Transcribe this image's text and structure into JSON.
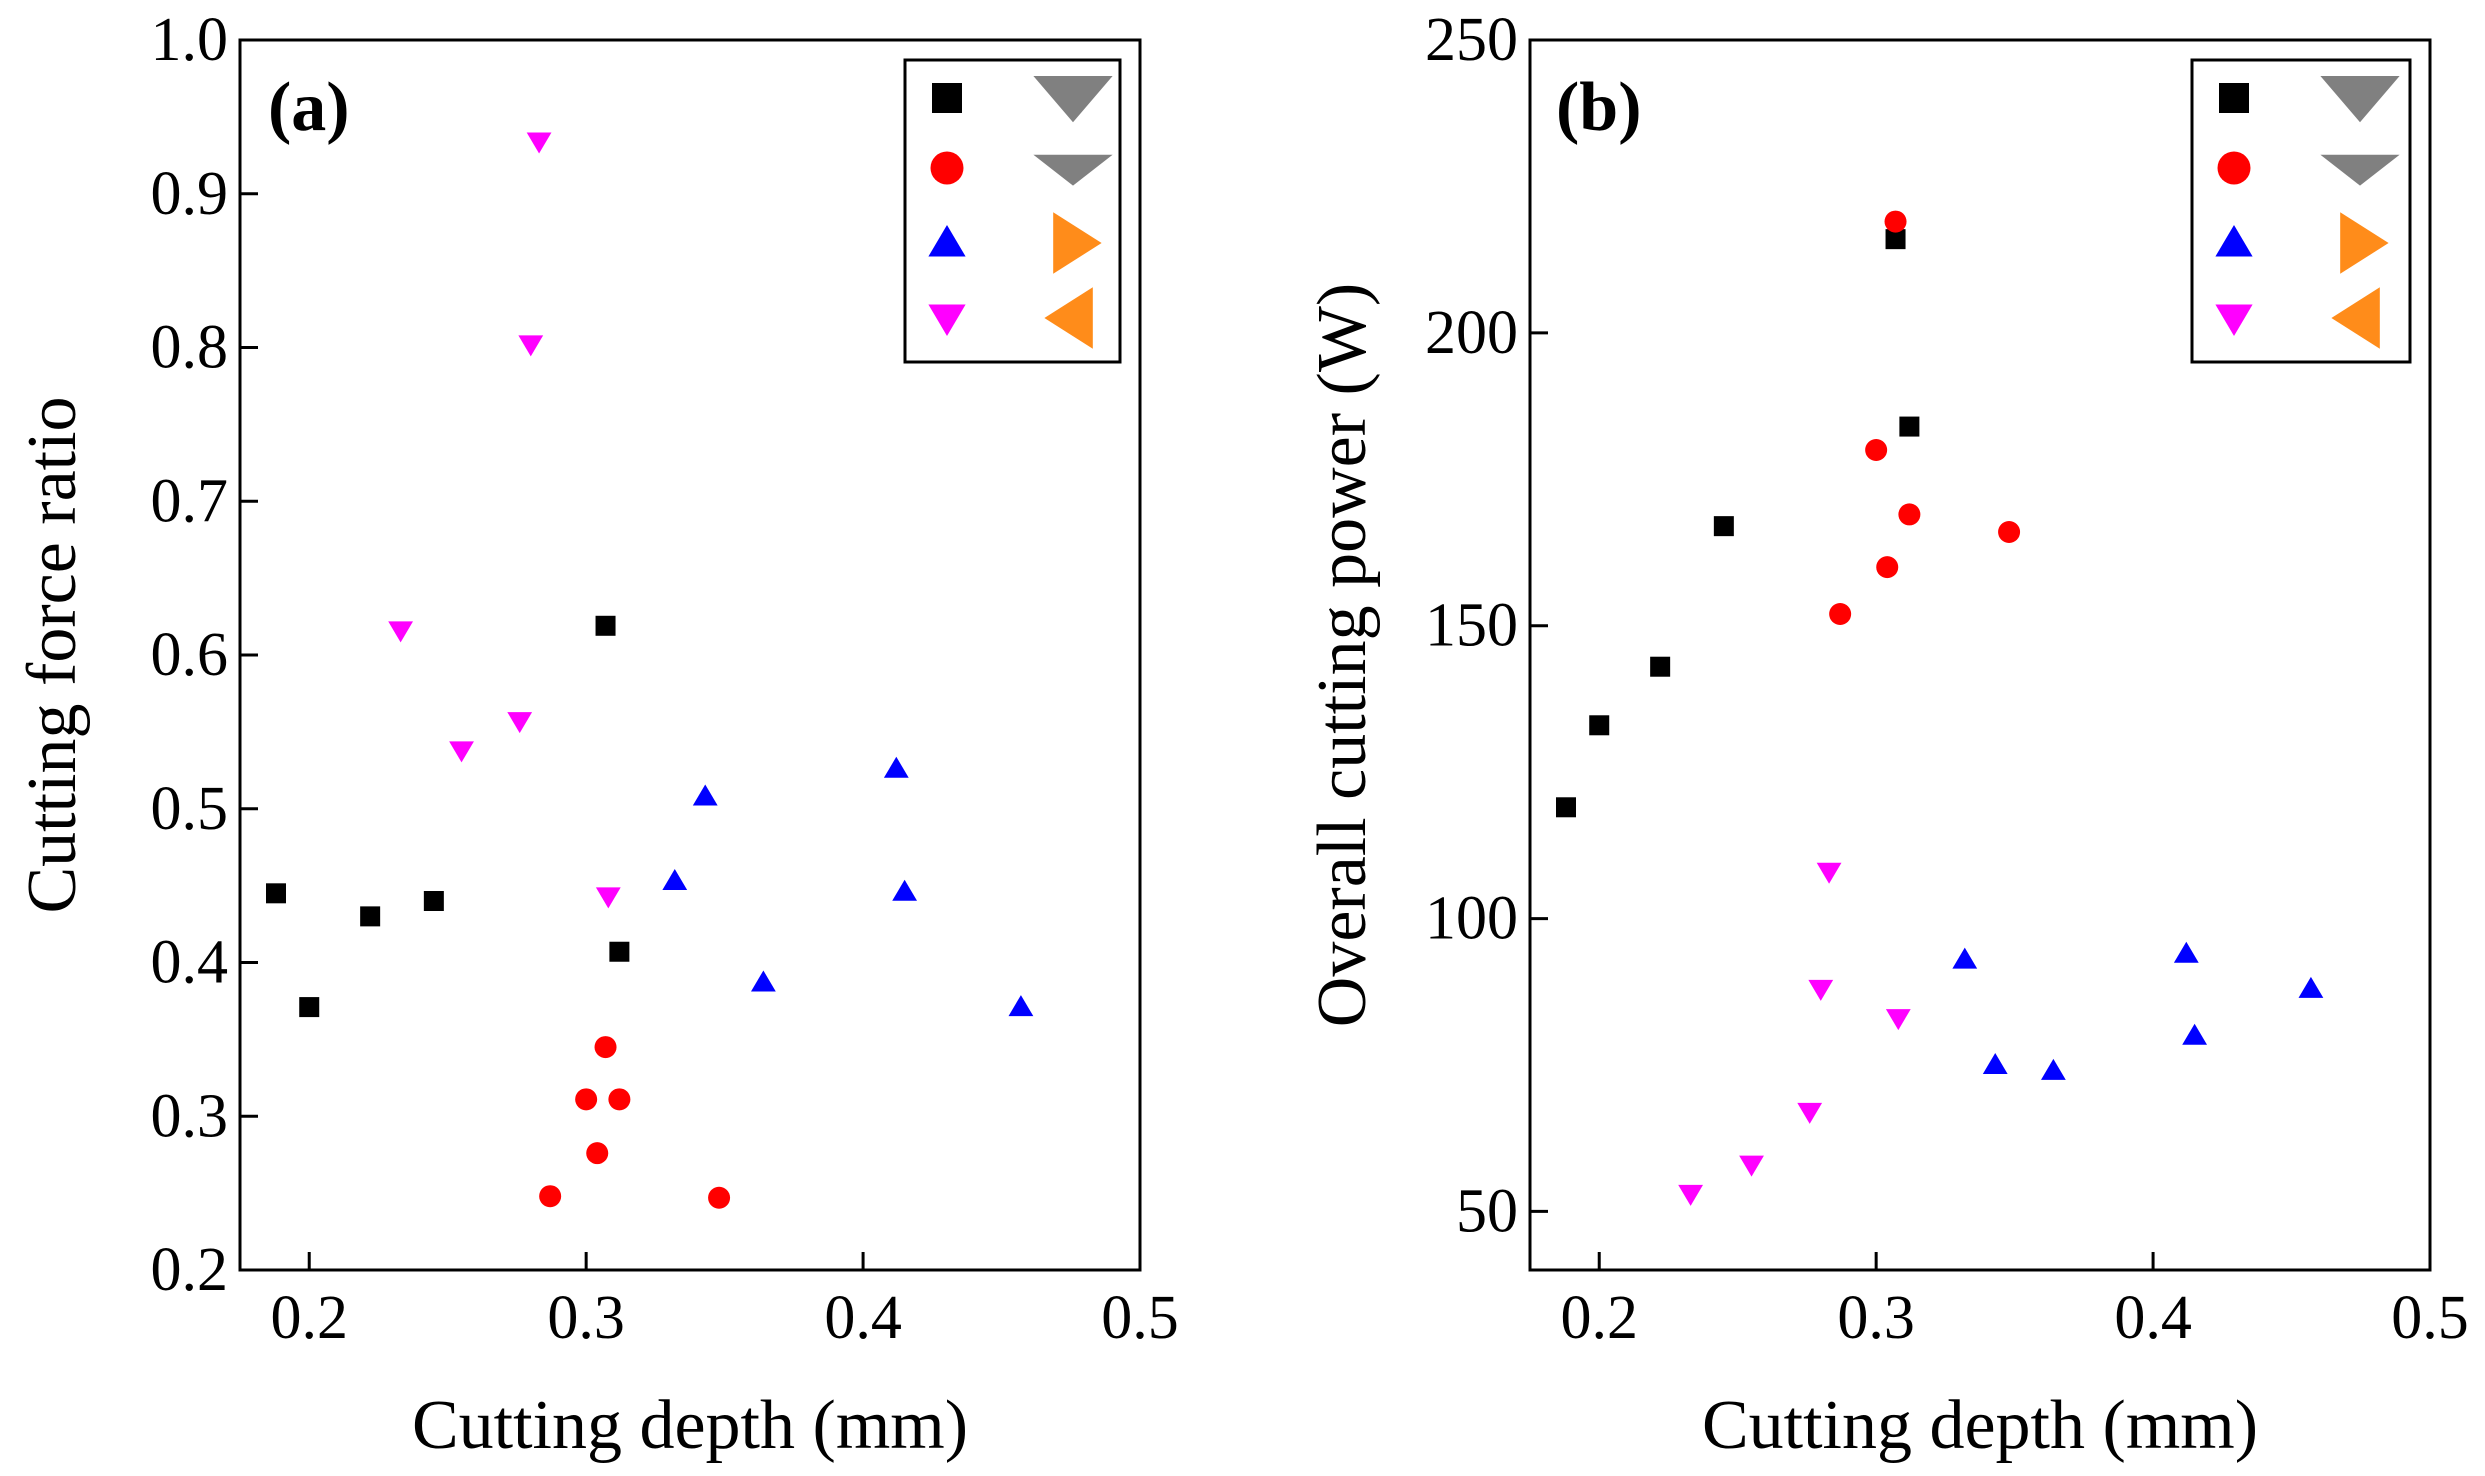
{
  "chart_data": [
    {
      "type": "scatter",
      "panel_label": "(a)",
      "xlabel": "Cutting depth (mm)",
      "ylabel": "Cutting force ratio",
      "xlim": [
        0.175,
        0.5
      ],
      "ylim": [
        0.2,
        1.0
      ],
      "xticks": [
        0.2,
        0.3,
        0.4,
        0.5
      ],
      "yticks": [
        0.2,
        0.3,
        0.4,
        0.5,
        0.6,
        0.7,
        0.8,
        0.9,
        1.0
      ],
      "xtick_labels": [
        "0.2",
        "0.3",
        "0.4",
        "0.5"
      ],
      "ytick_labels": [
        "0.2",
        "0.3",
        "0.4",
        "0.5",
        "0.6",
        "0.7",
        "0.8",
        "0.9",
        "1.0"
      ],
      "legend_position": "top-right",
      "series": [
        {
          "name": "black-square",
          "marker": "square",
          "color": "#000000",
          "x": [
            0.188,
            0.2,
            0.222,
            0.245,
            0.307,
            0.312
          ],
          "y": [
            0.445,
            0.371,
            0.43,
            0.44,
            0.619,
            0.407
          ]
        },
        {
          "name": "red-circle",
          "marker": "circle",
          "color": "#ff0000",
          "x": [
            0.287,
            0.3,
            0.304,
            0.307,
            0.312,
            0.348
          ],
          "y": [
            0.248,
            0.311,
            0.276,
            0.345,
            0.311,
            0.247
          ]
        },
        {
          "name": "blue-triangle-up",
          "marker": "triangle-up",
          "color": "#0000ff",
          "x": [
            0.332,
            0.343,
            0.364,
            0.412,
            0.415,
            0.457
          ],
          "y": [
            0.453,
            0.508,
            0.387,
            0.526,
            0.446,
            0.371
          ]
        },
        {
          "name": "magenta-triangle-down",
          "marker": "triangle-down",
          "color": "#ff00ff",
          "x": [
            0.233,
            0.255,
            0.276,
            0.28,
            0.283,
            0.308
          ],
          "y": [
            0.616,
            0.538,
            0.557,
            0.802,
            0.934,
            0.443
          ]
        }
      ],
      "legend_extra_markers": [
        {
          "marker": "triangle-down-wide",
          "color": "#808080"
        },
        {
          "marker": "triangle-down-flat",
          "color": "#808080"
        },
        {
          "marker": "triangle-right",
          "color": "#ff8c1a"
        },
        {
          "marker": "triangle-left",
          "color": "#ff8c1a"
        }
      ]
    },
    {
      "type": "scatter",
      "panel_label": "(b)",
      "xlabel": "Cutting depth (mm)",
      "ylabel": "Overall cutting power (W)",
      "xlim": [
        0.175,
        0.5
      ],
      "ylim": [
        40,
        250
      ],
      "xticks": [
        0.2,
        0.3,
        0.4,
        0.5
      ],
      "yticks": [
        50,
        100,
        150,
        200,
        250
      ],
      "xtick_labels": [
        "0.2",
        "0.3",
        "0.4",
        "0.5"
      ],
      "ytick_labels": [
        "50",
        "100",
        "150",
        "200",
        "250"
      ],
      "legend_position": "top-right",
      "series": [
        {
          "name": "black-square",
          "marker": "square",
          "color": "#000000",
          "x": [
            0.188,
            0.2,
            0.222,
            0.245,
            0.307,
            0.312
          ],
          "y": [
            119,
            133,
            143,
            167,
            216,
            184
          ]
        },
        {
          "name": "red-circle",
          "marker": "circle",
          "color": "#ff0000",
          "x": [
            0.287,
            0.3,
            0.304,
            0.307,
            0.312,
            0.348
          ],
          "y": [
            152,
            180,
            160,
            219,
            169,
            166
          ]
        },
        {
          "name": "blue-triangle-up",
          "marker": "triangle-up",
          "color": "#0000ff",
          "x": [
            0.332,
            0.343,
            0.364,
            0.412,
            0.415,
            0.457
          ],
          "y": [
            93,
            75,
            74,
            94,
            80,
            88
          ]
        },
        {
          "name": "magenta-triangle-down",
          "marker": "triangle-down",
          "color": "#ff00ff",
          "x": [
            0.233,
            0.255,
            0.276,
            0.28,
            0.283,
            0.308
          ],
          "y": [
            53,
            58,
            67,
            88,
            108,
            83
          ]
        }
      ],
      "legend_extra_markers": [
        {
          "marker": "triangle-down-wide",
          "color": "#808080"
        },
        {
          "marker": "triangle-down-flat",
          "color": "#808080"
        },
        {
          "marker": "triangle-right",
          "color": "#ff8c1a"
        },
        {
          "marker": "triangle-left",
          "color": "#ff8c1a"
        }
      ]
    }
  ]
}
